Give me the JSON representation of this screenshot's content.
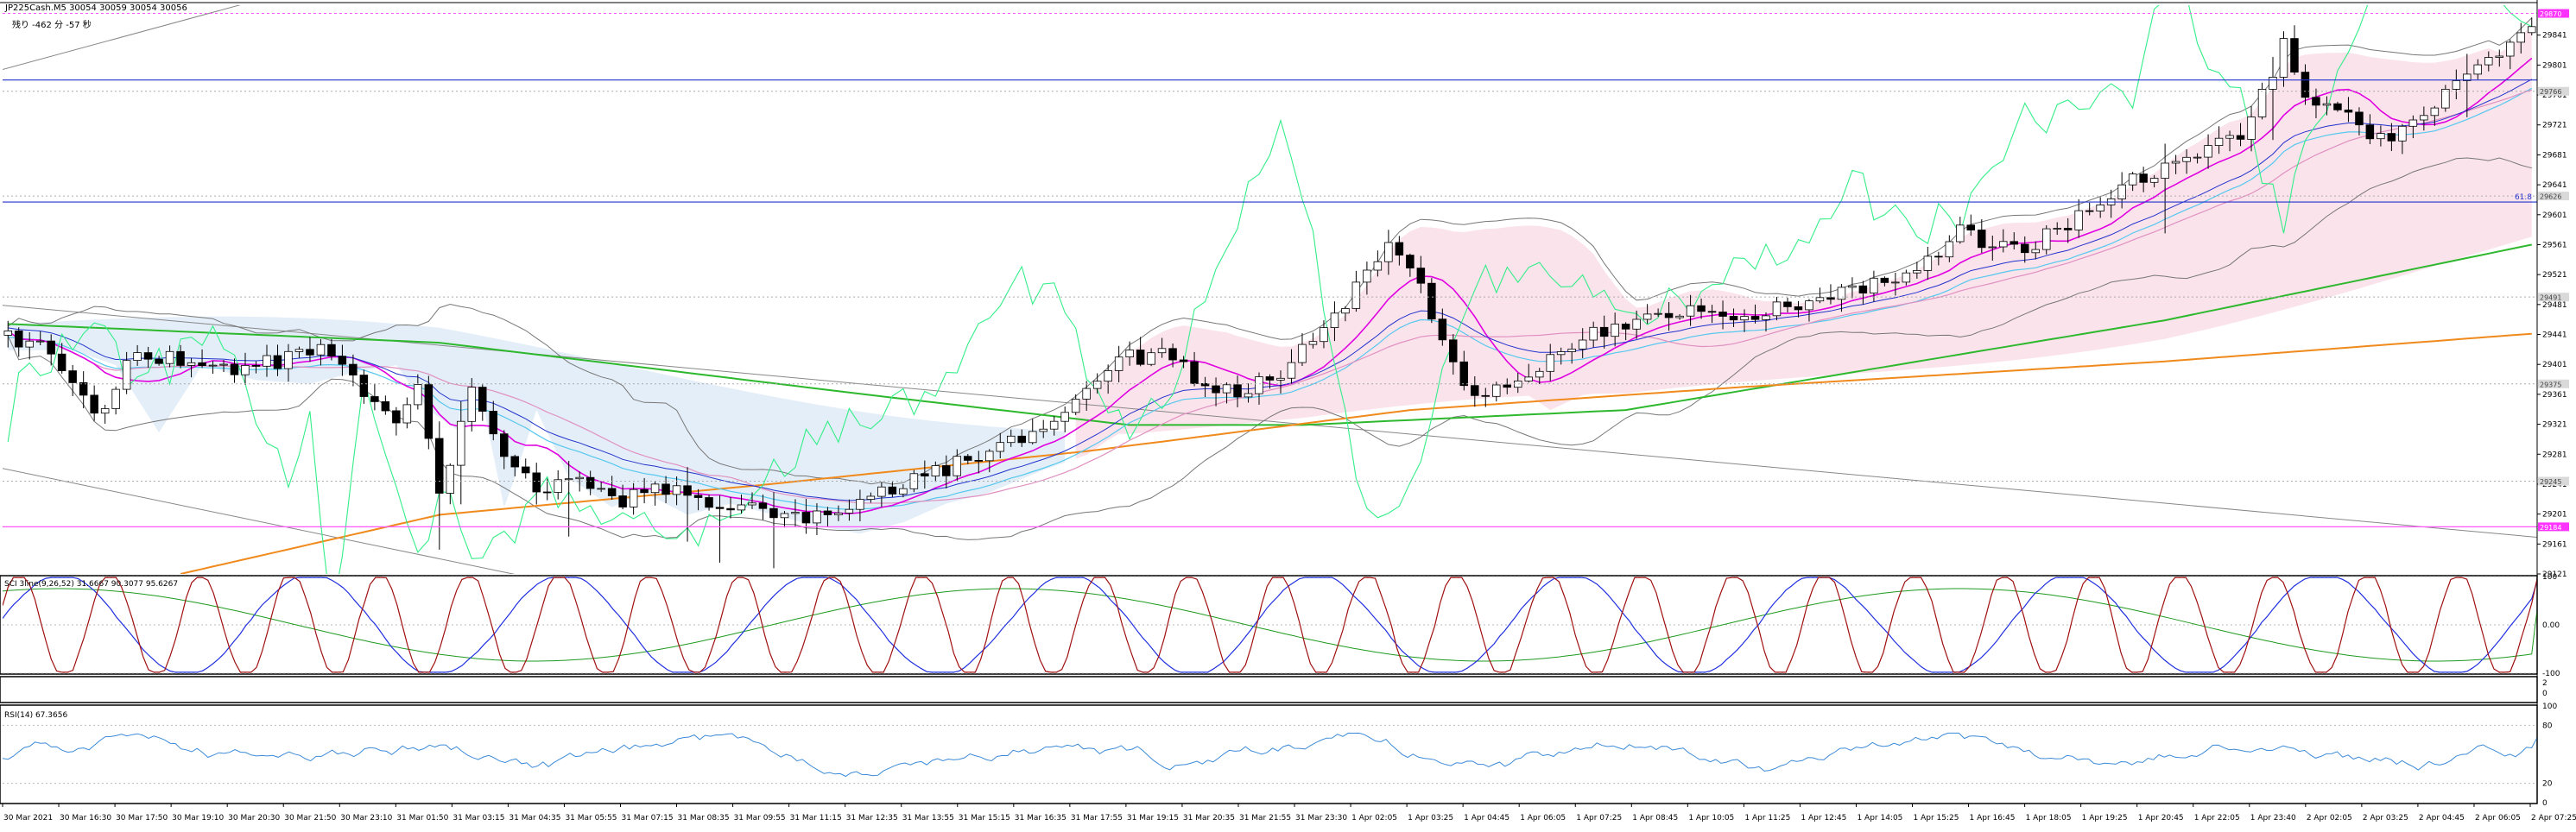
{
  "header": {
    "symbol_line": "JP225Cash.M5  30054 30059 30054 30056",
    "countdown_line": "残り -462 分 -57 秒"
  },
  "colors": {
    "background": "#ffffff",
    "frame": "#000000",
    "bull_candle": "#ffffff",
    "bear_candle": "#000000",
    "ma_green": "#2db82d",
    "ma_orange": "#f08a1c",
    "magenta": "#e000e0",
    "pink_line": "#ff55ff",
    "blue_line": "#2233cc",
    "cyan_line": "#55c8ee",
    "spring_green": "#33ee88",
    "band_gray": "#777777",
    "cloud_pink": "#fbe3ec",
    "cloud_blue": "#e4eef8",
    "stoch_red": "#a01010",
    "stoch_blue": "#2030e0",
    "stoch_green": "#1f9a1f",
    "rsi_line": "#3c8ad8",
    "label_gray_bg": "#d9d9d9",
    "label_magenta_bg": "#ff33ff"
  },
  "chart_data": [
    {
      "type": "candlestick",
      "panel": "main",
      "title": "JP225Cash.M5",
      "ylim": [
        29121,
        29881
      ],
      "y_ticks": [
        "29841",
        "29801",
        "29761",
        "29721",
        "29681",
        "29641",
        "29601",
        "29561",
        "29521",
        "29481",
        "29441",
        "29401",
        "29361",
        "29321",
        "29281",
        "29241",
        "29201",
        "29161",
        "29121"
      ],
      "x_tick_labels": [
        "30 Mar 2021",
        "30 Mar 16:30",
        "30 Mar 17:50",
        "30 Mar 19:10",
        "30 Mar 20:30",
        "30 Mar 21:50",
        "30 Mar 23:10",
        "31 Mar 01:50",
        "31 Mar 03:15",
        "31 Mar 04:35",
        "31 Mar 05:55",
        "31 Mar 07:15",
        "31 Mar 08:35",
        "31 Mar 09:55",
        "31 Mar 11:15",
        "31 Mar 12:35",
        "31 Mar 13:55",
        "31 Mar 15:15",
        "31 Mar 16:35",
        "31 Mar 17:55",
        "31 Mar 19:15",
        "31 Mar 20:35",
        "31 Mar 21:55",
        "31 Mar 23:30",
        "1 Apr 02:05",
        "1 Apr 03:25",
        "1 Apr 04:45",
        "1 Apr 06:05",
        "1 Apr 07:25",
        "1 Apr 08:45",
        "1 Apr 10:05",
        "1 Apr 11:25",
        "1 Apr 12:45",
        "1 Apr 14:05",
        "1 Apr 15:25",
        "1 Apr 16:45",
        "1 Apr 18:05",
        "1 Apr 19:25",
        "1 Apr 20:45",
        "1 Apr 22:05",
        "1 Apr 23:40",
        "2 Apr 02:05",
        "2 Apr 03:25",
        "2 Apr 04:45",
        "2 Apr 06:05",
        "2 Apr 07:25"
      ],
      "price_path": [
        [
          0,
          29440
        ],
        [
          4,
          29420
        ],
        [
          8,
          29330
        ],
        [
          12,
          29420
        ],
        [
          17,
          29400
        ],
        [
          22,
          29395
        ],
        [
          26,
          29410
        ],
        [
          30,
          29420
        ],
        [
          33,
          29360
        ],
        [
          36,
          29330
        ],
        [
          38,
          29370
        ],
        [
          40,
          29230
        ],
        [
          41,
          29270
        ],
        [
          43,
          29360
        ],
        [
          46,
          29270
        ],
        [
          50,
          29230
        ],
        [
          53,
          29250
        ],
        [
          57,
          29220
        ],
        [
          61,
          29235
        ],
        [
          65,
          29220
        ],
        [
          69,
          29205
        ],
        [
          73,
          29195
        ],
        [
          77,
          29210
        ],
        [
          81,
          29235
        ],
        [
          85,
          29250
        ],
        [
          90,
          29280
        ],
        [
          94,
          29300
        ],
        [
          98,
          29340
        ],
        [
          101,
          29380
        ],
        [
          104,
          29410
        ],
        [
          108,
          29415
        ],
        [
          111,
          29370
        ],
        [
          114,
          29365
        ],
        [
          117,
          29380
        ],
        [
          120,
          29420
        ],
        [
          123,
          29470
        ],
        [
          126,
          29520
        ],
        [
          128,
          29570
        ],
        [
          131,
          29500
        ],
        [
          133,
          29430
        ],
        [
          135,
          29380
        ],
        [
          137,
          29360
        ],
        [
          140,
          29380
        ],
        [
          144,
          29420
        ],
        [
          147,
          29445
        ],
        [
          151,
          29460
        ],
        [
          156,
          29470
        ],
        [
          160,
          29460
        ],
        [
          165,
          29480
        ],
        [
          170,
          29500
        ],
        [
          174,
          29510
        ],
        [
          178,
          29540
        ],
        [
          181,
          29580
        ],
        [
          184,
          29560
        ],
        [
          187,
          29555
        ],
        [
          190,
          29580
        ],
        [
          193,
          29610
        ],
        [
          196,
          29640
        ],
        [
          199,
          29660
        ],
        [
          201,
          29670
        ],
        [
          204,
          29690
        ],
        [
          207,
          29700
        ],
        [
          209,
          29760
        ],
        [
          211,
          29830
        ],
        [
          213,
          29760
        ],
        [
          215,
          29750
        ],
        [
          217,
          29735
        ],
        [
          219,
          29710
        ],
        [
          221,
          29710
        ],
        [
          223,
          29725
        ],
        [
          225,
          29750
        ],
        [
          227,
          29780
        ],
        [
          229,
          29800
        ],
        [
          231,
          29820
        ],
        [
          233,
          29840
        ],
        [
          234,
          29846
        ]
      ],
      "key_price_points": {
        "start_open": 29440,
        "low_31_mar": 29157,
        "high_1_apr_0325": 29586,
        "low_1_apr_0605": 29340,
        "high_2_apr_0205": 29832,
        "last_close": 30056
      },
      "horizontal_levels": [
        {
          "price": 29870,
          "style": "dashed",
          "color": "magenta"
        },
        {
          "price": 29781,
          "style": "solid",
          "color": "blue"
        },
        {
          "price": 29766,
          "style": "dotted",
          "color": "gray"
        },
        {
          "price": 29626,
          "style": "dotted",
          "color": "gray"
        },
        {
          "price": 29618,
          "style": "solid",
          "color": "blue",
          "tag": "61.8"
        },
        {
          "price": 29491,
          "style": "dotted",
          "color": "gray"
        },
        {
          "price": 29375,
          "style": "dotted",
          "color": "gray"
        },
        {
          "price": 29245,
          "style": "dotted",
          "color": "gray"
        },
        {
          "price": 29184,
          "style": "solid",
          "color": "magenta"
        }
      ],
      "price_labels": [
        "29870",
        "29766",
        "29626",
        "29491",
        "29375",
        "29245",
        "29184"
      ],
      "fib_tag": "61.8",
      "moving_averages": [
        {
          "color": "green",
          "points": [
            [
              0,
              29455
            ],
            [
              40,
              29430
            ],
            [
              80,
              29360
            ],
            [
              104,
              29320
            ],
            [
              120,
              29320
            ],
            [
              150,
              29340
            ],
            [
              200,
              29460
            ],
            [
              234,
              29561
            ]
          ]
        },
        {
          "color": "orange",
          "points": [
            [
              16,
              29121
            ],
            [
              40,
              29200
            ],
            [
              70,
              29240
            ],
            [
              100,
              29285
            ],
            [
              130,
              29340
            ],
            [
              160,
              29370
            ],
            [
              200,
              29405
            ],
            [
              234,
              29442
            ]
          ]
        }
      ]
    },
    {
      "type": "line",
      "panel": "stochastic",
      "title": "SCI 3line(9,26,52) 31.6667 90.3077 95.6267",
      "ylim": [
        -100,
        100
      ],
      "y_ticks": [
        "100",
        "0.00",
        "-100"
      ],
      "series": [
        {
          "color": "red",
          "values": [
            95.6267
          ]
        },
        {
          "color": "blue",
          "values": [
            90.3077
          ]
        },
        {
          "color": "green",
          "values": [
            31.6667
          ]
        }
      ]
    },
    {
      "type": "line",
      "panel": "rsi",
      "title": "RSI(14) 67.3656",
      "ylim": [
        0,
        100
      ],
      "y_ticks": [
        "100",
        "80",
        "20",
        "0"
      ],
      "last_value": 67.3656
    }
  ],
  "between_panel_ticks": [
    "2",
    "0"
  ]
}
